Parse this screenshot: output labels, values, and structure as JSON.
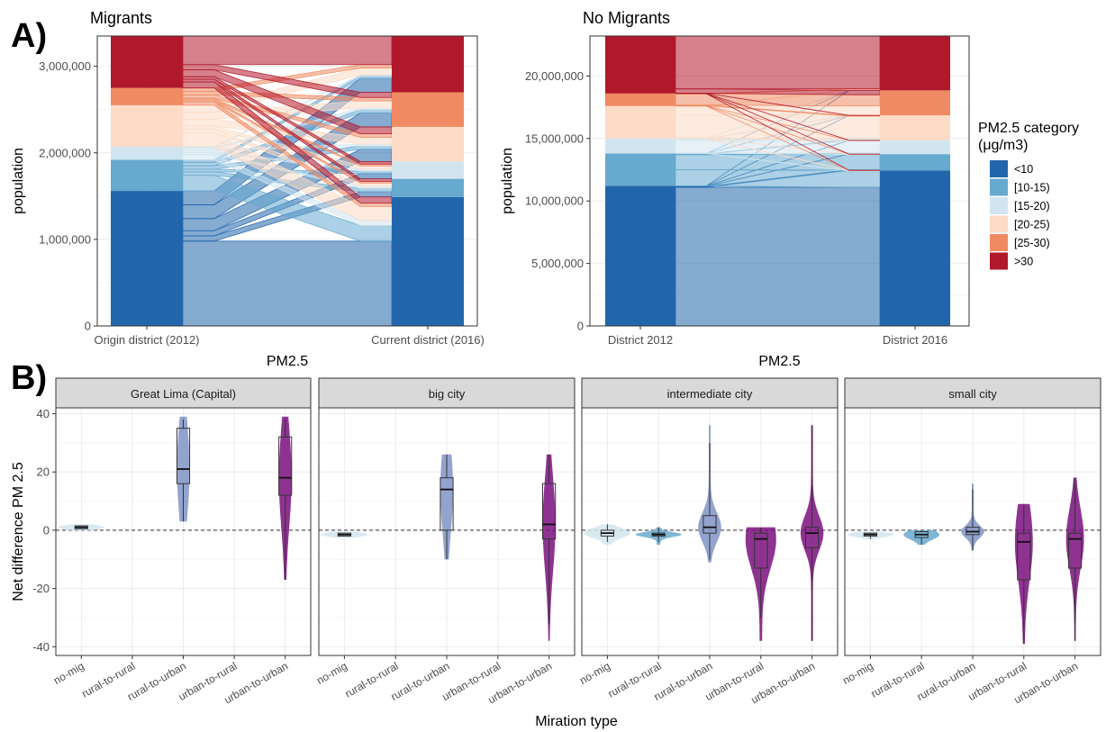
{
  "panel_labels": {
    "a": "A)",
    "b": "B)"
  },
  "colors": {
    "lt10": "#2166ac",
    "c10_15": "#67a9cf",
    "c15_20": "#d1e5f0",
    "c20_25": "#fddbc7",
    "c25_30": "#ef8a62",
    "gt30": "#b2182b",
    "violin": "#7f93c5",
    "violin2": "#7a0f7e",
    "strip": "#d9d9d9",
    "grid": "#ebebeb"
  },
  "legend": {
    "title_line1": "PM2.5 category",
    "title_line2": "(μg/m3)",
    "items": [
      {
        "label": "<10",
        "color_key": "lt10"
      },
      {
        "label": "[10-15)",
        "color_key": "c10_15"
      },
      {
        "label": "[15-20)",
        "color_key": "c15_20"
      },
      {
        "label": "[20-25)",
        "color_key": "c20_25"
      },
      {
        "label": "[25-30)",
        "color_key": "c25_30"
      },
      {
        "label": ">30",
        "color_key": "gt30"
      }
    ]
  },
  "chart_data": [
    {
      "type": "alluvial",
      "title": "Migrants",
      "xlabel": "PM2.5",
      "ylabel": "population",
      "categories": [
        "Origin district (2012)",
        "Current district (2016)"
      ],
      "yticks": [
        0,
        1000000,
        2000000,
        3000000
      ],
      "ytick_labels": [
        "0",
        "1,000,000",
        "2,000,000",
        "3,000,000"
      ],
      "ylim": [
        0,
        3350000
      ],
      "stacks": {
        "left": [
          1560000,
          360000,
          150000,
          480000,
          200000,
          600000
        ],
        "right": [
          1490000,
          210000,
          200000,
          400000,
          400000,
          650000
        ]
      },
      "flows_from_left": [
        [
          980000,
          60000,
          60000,
          140000,
          160000,
          160000
        ],
        [
          180000,
          40000,
          30000,
          40000,
          40000,
          30000
        ],
        [
          60000,
          20000,
          20000,
          20000,
          20000,
          10000
        ],
        [
          160000,
          40000,
          40000,
          80000,
          80000,
          80000
        ],
        [
          40000,
          20000,
          20000,
          40000,
          40000,
          40000
        ],
        [
          70000,
          30000,
          30000,
          80000,
          60000,
          330000
        ]
      ]
    },
    {
      "type": "alluvial",
      "title": "No Migrants",
      "xlabel": "PM2.5",
      "ylabel": "population",
      "categories": [
        "District 2012",
        "District 2016"
      ],
      "yticks": [
        0,
        5000000,
        10000000,
        15000000,
        20000000
      ],
      "ytick_labels": [
        "0",
        "5,000,000",
        "10,000,000",
        "15,000,000",
        "20,000,000"
      ],
      "ylim": [
        0,
        23200000
      ],
      "stacks": {
        "left": [
          11200000,
          2600000,
          1200000,
          2600000,
          1000000,
          4600000
        ],
        "right": [
          12450000,
          1300000,
          1100000,
          2000000,
          2000000,
          4350000
        ]
      },
      "flows_from_left": [
        [
          11100000,
          60000,
          20000,
          10000,
          5000,
          5000
        ],
        [
          1300000,
          1200000,
          50000,
          30000,
          10000,
          10000
        ],
        [
          20000,
          20000,
          1000000,
          100000,
          40000,
          20000
        ],
        [
          20000,
          10000,
          20000,
          1800000,
          700000,
          50000
        ],
        [
          5000,
          5000,
          5000,
          50000,
          900000,
          35000
        ],
        [
          5000,
          5000,
          5000,
          10000,
          345000,
          4230000
        ]
      ]
    },
    {
      "type": "violin",
      "ylabel": "Net difference PM 2.5",
      "xlabel": "Miration type",
      "facets": [
        "Great Lima (Capital)",
        "big city",
        "intermediate city",
        "small city"
      ],
      "categories": [
        "no-mig",
        "rural-to-rural",
        "rural-to-urban",
        "urban-to-rural",
        "urban-to-urban"
      ],
      "yticks": [
        -40,
        -20,
        0,
        20,
        40
      ],
      "ylim": [
        -43,
        42
      ],
      "series": [
        [
          {
            "cat": "no-mig",
            "min": 0,
            "max": 2,
            "q1": 0.5,
            "med": 1,
            "q3": 1.5,
            "lo": 0.5,
            "hi": 1.5,
            "w": 0.9,
            "fill": "c15_20"
          },
          {
            "cat": "rural-to-urban",
            "min": 3,
            "max": 39,
            "q1": 16,
            "med": 21,
            "q3": 35,
            "lo": 3,
            "hi": 38,
            "w": 0.25,
            "fill": "violin"
          },
          {
            "cat": "urban-to-urban",
            "min": -17,
            "max": 39,
            "q1": 12,
            "med": 18,
            "q3": 32,
            "lo": -17,
            "hi": 38,
            "w": 0.25,
            "fill": "violin2"
          }
        ],
        [
          {
            "cat": "no-mig",
            "min": -2.5,
            "max": -0.5,
            "q1": -2,
            "med": -1.5,
            "q3": -1,
            "lo": -2,
            "hi": -1,
            "w": 0.9,
            "fill": "c15_20"
          },
          {
            "cat": "rural-to-urban",
            "min": -10,
            "max": 26,
            "q1": 0,
            "med": 14,
            "q3": 18,
            "lo": -10,
            "hi": 26,
            "w": 0.25,
            "fill": "violin"
          },
          {
            "cat": "urban-to-urban",
            "min": -38,
            "max": 26,
            "q1": -3,
            "med": 2,
            "q3": 16,
            "lo": -32,
            "hi": 26,
            "w": 0.25,
            "fill": "violin2"
          }
        ],
        [
          {
            "cat": "no-mig",
            "min": -5,
            "max": 2,
            "q1": -2,
            "med": -1,
            "q3": 0,
            "lo": -4,
            "hi": 2,
            "w": 0.9,
            "fill": "c15_20"
          },
          {
            "cat": "rural-to-rural",
            "min": -5,
            "max": 1,
            "q1": -2,
            "med": -1.5,
            "q3": -1,
            "lo": -4,
            "hi": 1,
            "w": 0.9,
            "fill": "c10_15"
          },
          {
            "cat": "rural-to-urban",
            "min": -11,
            "max": 36,
            "q1": -1,
            "med": 1,
            "q3": 5,
            "lo": -10,
            "hi": 30,
            "w": 0.45,
            "fill": "violin"
          },
          {
            "cat": "urban-to-rural",
            "min": -38,
            "max": 1,
            "q1": -13,
            "med": -3,
            "q3": -1,
            "lo": -30,
            "hi": 1,
            "w": 0.6,
            "fill": "violin2"
          },
          {
            "cat": "urban-to-urban",
            "min": -38,
            "max": 36,
            "q1": -6,
            "med": -1,
            "q3": 1,
            "lo": -38,
            "hi": 36,
            "w": 0.45,
            "fill": "violin2"
          }
        ],
        [
          {
            "cat": "no-mig",
            "min": -3,
            "max": -0.5,
            "q1": -2,
            "med": -1.5,
            "q3": -1,
            "lo": -3,
            "hi": -1,
            "w": 0.9,
            "fill": "c15_20"
          },
          {
            "cat": "rural-to-rural",
            "min": -5,
            "max": 0,
            "q1": -2.5,
            "med": -1.5,
            "q3": -0.5,
            "lo": -5,
            "hi": 0,
            "w": 0.7,
            "fill": "c10_15"
          },
          {
            "cat": "rural-to-urban",
            "min": -7,
            "max": 16,
            "q1": -1.5,
            "med": -0.5,
            "q3": 1,
            "lo": -7,
            "hi": 14,
            "w": 0.45,
            "fill": "violin"
          },
          {
            "cat": "urban-to-rural",
            "min": -39,
            "max": 9,
            "q1": -17,
            "med": -4,
            "q3": -1,
            "lo": -39,
            "hi": 9,
            "w": 0.35,
            "fill": "violin2"
          },
          {
            "cat": "urban-to-urban",
            "min": -38,
            "max": 18,
            "q1": -13,
            "med": -3,
            "q3": -1,
            "lo": -38,
            "hi": 18,
            "w": 0.35,
            "fill": "violin2"
          }
        ]
      ]
    }
  ]
}
